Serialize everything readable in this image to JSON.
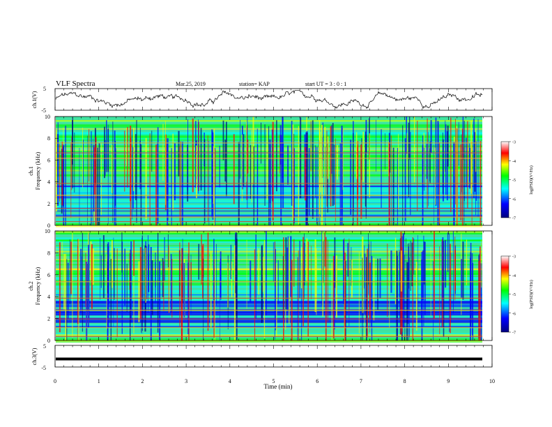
{
  "header": {
    "title": "VLF Spectra",
    "date": "Mar.25, 2019",
    "station": "station= KAP",
    "start": "start  UT =   3 : 0  : 1"
  },
  "chart_data": [
    {
      "type": "line",
      "title": "",
      "ylabel": "ch.1(V)",
      "xlim": [
        0,
        10
      ],
      "ylim": [
        -5,
        5
      ],
      "yticks": [
        "5",
        "-5"
      ],
      "note": "dense oscillating waveform across the full time range"
    },
    {
      "type": "heatmap",
      "ylabel": "ch.1\nFrequency (kHz)",
      "xlim": [
        0,
        10
      ],
      "ylim": [
        0,
        10
      ],
      "yticks": [
        "0",
        "2",
        "4",
        "6",
        "8",
        "10"
      ],
      "colorbar": {
        "label": "log(PSD)(V²/Hz)",
        "ticks": [
          "-3",
          "-4",
          "-5",
          "-6",
          "-7"
        ],
        "range": [
          -7,
          -3
        ],
        "colors": [
          "#00007f",
          "#0000ff",
          "#00ffff",
          "#00ff00",
          "#ffff00",
          "#ff0000",
          "#ffffff"
        ]
      }
    },
    {
      "type": "heatmap",
      "ylabel": "ch.2\nFrequency (kHz)",
      "xlim": [
        0,
        10
      ],
      "ylim": [
        0,
        10
      ],
      "yticks": [
        "0",
        "2",
        "4",
        "6",
        "8",
        "10"
      ],
      "colorbar": {
        "label": "log(PSD)(V²/Hz)",
        "ticks": [
          "-3",
          "-4",
          "-5",
          "-6",
          "-7"
        ],
        "range": [
          -7,
          -3
        ],
        "colors": [
          "#00007f",
          "#0000ff",
          "#00ffff",
          "#00ff00",
          "#ffff00",
          "#ff0000",
          "#ffffff"
        ]
      }
    },
    {
      "type": "line",
      "ylabel": "ch.3(V)",
      "xlim": [
        0,
        10
      ],
      "ylim": [
        -5,
        5
      ],
      "yticks": [
        "5",
        "-5"
      ],
      "constant_value": -1.3
    }
  ],
  "xaxis": {
    "label": "Time  (min)",
    "ticks": [
      "0",
      "1",
      "2",
      "3",
      "4",
      "5",
      "6",
      "7",
      "8",
      "9",
      "10"
    ]
  }
}
